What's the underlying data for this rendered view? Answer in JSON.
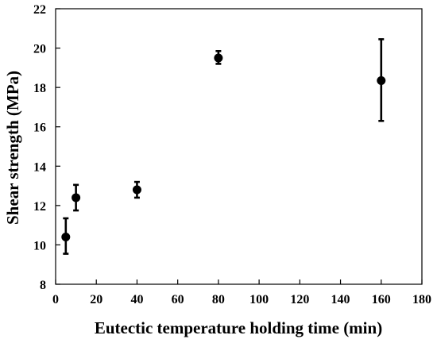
{
  "chart_data": {
    "type": "scatter",
    "title": "",
    "xlabel": "Eutectic temperature holding time (min)",
    "ylabel": "Shear strength (MPa)",
    "xlim": [
      0,
      180
    ],
    "ylim": [
      8,
      22
    ],
    "xticks": [
      0,
      20,
      40,
      60,
      80,
      100,
      120,
      140,
      160,
      180
    ],
    "yticks": [
      8,
      10,
      12,
      14,
      16,
      18,
      20,
      22
    ],
    "grid": false,
    "legend": "none",
    "colors": {
      "marker": "#000000",
      "axis": "#000000"
    },
    "series": [
      {
        "points": [
          {
            "x": 5,
            "y": 10.4,
            "err_low": 9.55,
            "err_high": 11.35
          },
          {
            "x": 10,
            "y": 12.4,
            "err_low": 11.75,
            "err_high": 13.05
          },
          {
            "x": 40,
            "y": 12.8,
            "err_low": 12.4,
            "err_high": 13.2
          },
          {
            "x": 80,
            "y": 19.5,
            "err_low": 19.2,
            "err_high": 19.85
          },
          {
            "x": 160,
            "y": 18.35,
            "err_low": 16.3,
            "err_high": 20.45
          }
        ]
      }
    ]
  }
}
